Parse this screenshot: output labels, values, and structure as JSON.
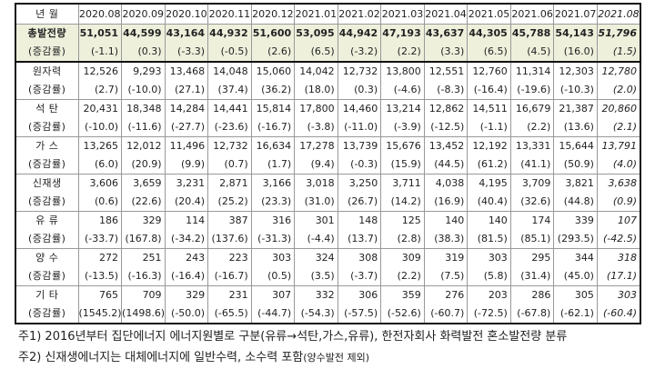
{
  "table": {
    "header_label": "년  월",
    "months": [
      "2020.08",
      "2020.09",
      "2020.10",
      "2020.11",
      "2020.12",
      "2021.01",
      "2021.02",
      "2021.03",
      "2021.04",
      "2021.05",
      "2021.06",
      "2021.07",
      "2021.08"
    ],
    "rate_label": "(증감률)",
    "rows": [
      {
        "label": "총발전량",
        "values": [
          "51,051",
          "44,599",
          "43,164",
          "44,932",
          "51,600",
          "53,095",
          "44,942",
          "47,193",
          "43,637",
          "44,305",
          "45,788",
          "54,143",
          "51,796"
        ],
        "rates": [
          "(-1.1)",
          "(0.3)",
          "(-3.3)",
          "(-0.5)",
          "(2.6)",
          "(6.5)",
          "(-3.2)",
          "(2.2)",
          "(3.3)",
          "(6.5)",
          "(4.5)",
          "(16.0)",
          "(1.5)"
        ]
      },
      {
        "label": "원자력",
        "values": [
          "12,526",
          "9,293",
          "13,468",
          "14,048",
          "15,060",
          "14,042",
          "12,732",
          "13,800",
          "12,551",
          "12,760",
          "11,314",
          "12,303",
          "12,780"
        ],
        "rates": [
          "(2.7)",
          "(-10.0)",
          "(27.1)",
          "(37.4)",
          "(36.2)",
          "(18.0)",
          "(0.3)",
          "(-4.6)",
          "(-8.3)",
          "(-16.4)",
          "(-19.6)",
          "(-10.3)",
          "(2.0)"
        ]
      },
      {
        "label": "석  탄",
        "values": [
          "20,431",
          "18,348",
          "14,284",
          "14,441",
          "15,814",
          "17,800",
          "14,460",
          "13,214",
          "12,862",
          "14,511",
          "16,679",
          "21,387",
          "20,860"
        ],
        "rates": [
          "(-10.0)",
          "(-11.6)",
          "(-27.7)",
          "(-23.6)",
          "(-16.7)",
          "(-3.8)",
          "(-11.0)",
          "(-3.9)",
          "(-12.5)",
          "(-1.1)",
          "(2.2)",
          "(13.6)",
          "(2.1)"
        ]
      },
      {
        "label": "가  스",
        "values": [
          "13,265",
          "12,012",
          "11,496",
          "12,732",
          "16,634",
          "17,278",
          "13,739",
          "15,676",
          "13,452",
          "12,192",
          "13,331",
          "15,644",
          "13,791"
        ],
        "rates": [
          "(6.0)",
          "(20.9)",
          "(9.9)",
          "(0.7)",
          "(1.7)",
          "(9.4)",
          "(-0.3)",
          "(15.9)",
          "(44.5)",
          "(61.2)",
          "(41.1)",
          "(50.9)",
          "(4.0)"
        ]
      },
      {
        "label": "신재생",
        "values": [
          "3,606",
          "3,659",
          "3,231",
          "2,871",
          "3,166",
          "3,018",
          "3,250",
          "3,711",
          "4,038",
          "4,195",
          "3,709",
          "3,821",
          "3,638"
        ],
        "rates": [
          "(0.6)",
          "(22.6)",
          "(20.4)",
          "(25.2)",
          "(23.3)",
          "(31.0)",
          "(26.7)",
          "(14.2)",
          "(16.9)",
          "(40.4)",
          "(32.6)",
          "(44.8)",
          "(0.9)"
        ]
      },
      {
        "label": "유  류",
        "values": [
          "186",
          "329",
          "114",
          "387",
          "316",
          "301",
          "148",
          "125",
          "140",
          "140",
          "174",
          "339",
          "107"
        ],
        "rates": [
          "(-33.7)",
          "(167.8)",
          "(-34.2)",
          "(137.6)",
          "(-31.3)",
          "(-4.4)",
          "(13.7)",
          "(2.8)",
          "(38.3)",
          "(81.5)",
          "(85.1)",
          "(293.5)",
          "(-42.5)"
        ]
      },
      {
        "label": "양  수",
        "values": [
          "272",
          "251",
          "243",
          "223",
          "303",
          "324",
          "308",
          "309",
          "319",
          "303",
          "295",
          "344",
          "318"
        ],
        "rates": [
          "(-13.5)",
          "(-16.3)",
          "(-16.4)",
          "(-16.7)",
          "(0.5)",
          "(3.5)",
          "(-3.7)",
          "(2.2)",
          "(7.5)",
          "(5.8)",
          "(31.4)",
          "(45.0)",
          "(17.1)"
        ]
      },
      {
        "label": "기  타",
        "values": [
          "765",
          "709",
          "329",
          "231",
          "307",
          "332",
          "306",
          "359",
          "276",
          "203",
          "286",
          "305",
          "303"
        ],
        "rates": [
          "(1545.2)",
          "(1498.6)",
          "(-50.0)",
          "(-65.5)",
          "(-44.7)",
          "(-54.3)",
          "(-57.5)",
          "(-52.6)",
          "(-60.7)",
          "(-72.5)",
          "(-67.8)",
          "(-62.1)",
          "(-60.4)"
        ]
      }
    ]
  },
  "notes": {
    "note1": "주1) 2016년부터 집단에너지 에너지원별로 구분(유류→석탄,가스,유류), 한전자회사 화력발전 혼소발전량 분류",
    "note2_main": "주2) 신재생에너지는 대체에너지에 일반수력, 소수력 포함",
    "note2_small": "(양수발전 제외)"
  },
  "colors": {
    "total_row_bg": "#eef0dc",
    "border": "#111111"
  }
}
